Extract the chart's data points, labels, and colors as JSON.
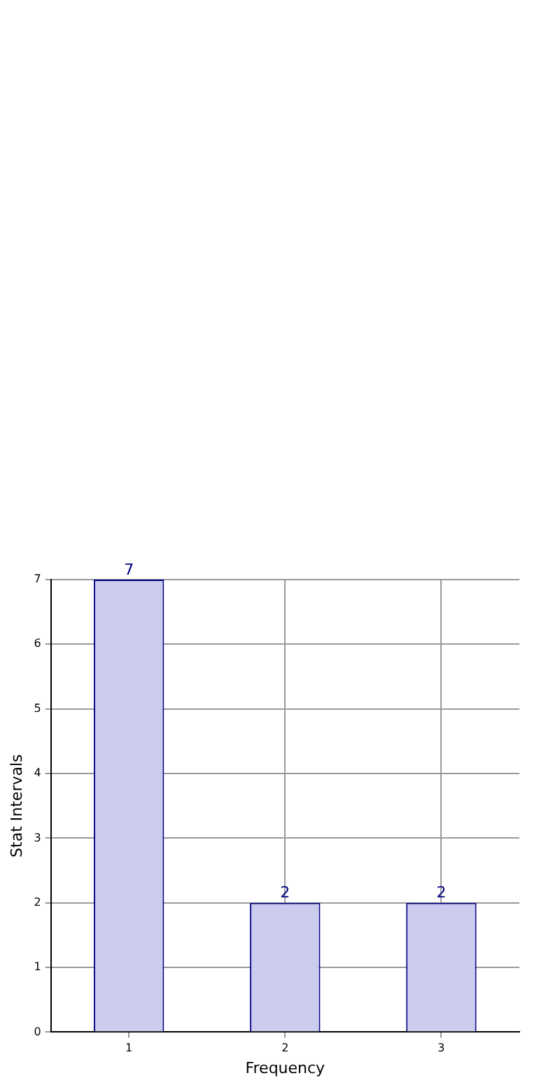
{
  "chart_data": {
    "type": "bar",
    "xlabel": "Frequency",
    "ylabel": "Stat Intervals",
    "categories": [
      "1",
      "2",
      "3"
    ],
    "series": [
      {
        "color": "#ccccee",
        "values": [
          7,
          2,
          2
        ]
      }
    ],
    "ylim": [
      0,
      7
    ],
    "yticks": [
      0,
      1,
      2,
      3,
      4,
      5,
      6,
      7
    ],
    "grid": true,
    "data_labels": true,
    "legend": false
  }
}
